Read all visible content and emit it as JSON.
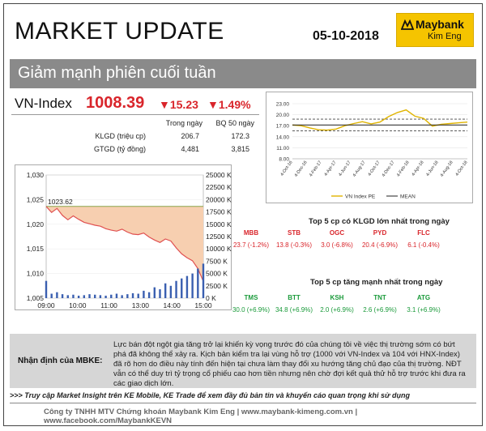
{
  "header": {
    "title": "MARKET UPDATE",
    "date": "05-10-2018",
    "logo_brand": "Maybank",
    "logo_sub": "Kim Eng"
  },
  "banner": {
    "text": "Giảm mạnh phiên cuối tuần"
  },
  "index": {
    "name": "VN-Index",
    "value": "1008.39",
    "change": "▼15.23",
    "change_pct": "▼1.49%"
  },
  "stats": {
    "col1": "Trong ngày",
    "col2": "BQ 50 ngày",
    "rows": [
      {
        "label": "KLGD (triệu cp)",
        "today": "206.7",
        "avg50": "172.3"
      },
      {
        "label": "GTGD (tỷ đồng)",
        "today": "4,481",
        "avg50": "3,815"
      }
    ]
  },
  "colors": {
    "accent_red": "#d9252b",
    "accent_green": "#1a9a3a",
    "logo_yellow": "#f5c400",
    "pe_line": "#e0b400",
    "index_line": "#e05050",
    "fill": "#f7cfb0"
  },
  "chart_data": [
    {
      "type": "line",
      "title": "",
      "series": [
        {
          "name": "VN Index PE",
          "values": [
            17.2,
            17.0,
            16.4,
            15.9,
            15.8,
            16.1,
            17.0,
            17.6,
            18.1,
            17.5,
            18.0,
            19.5,
            20.6,
            21.3,
            19.6,
            19.0,
            16.9,
            17.4,
            17.6,
            17.8,
            18.0
          ]
        },
        {
          "name": "MEAN",
          "values": [
            17.2,
            17.2,
            17.2,
            17.2,
            17.2,
            17.2,
            17.2,
            17.2,
            17.2,
            17.2,
            17.2,
            17.2,
            17.2,
            17.2,
            17.2,
            17.2,
            17.2,
            17.2,
            17.2,
            17.2,
            17.2
          ]
        }
      ],
      "bands": [
        18.8,
        15.6
      ],
      "x_ticks": [
        "4-Oct-16",
        "4-Dec-16",
        "4-Feb-17",
        "4-Apr-17",
        "4-Jun-17",
        "4-Aug-17",
        "4-Oct-17",
        "4-Dec-17",
        "4-Feb-18",
        "4-Apr-18",
        "4-Jun-18",
        "4-Aug-18",
        "4-Oct-18"
      ],
      "y_ticks": [
        "23.00",
        "20.00",
        "17.00",
        "14.00",
        "11.00",
        "8.00"
      ],
      "ylim": [
        8,
        23
      ],
      "legend": "bottom"
    },
    {
      "type": "area",
      "title": "",
      "x_ticks": [
        "09:00",
        "10:00",
        "11:00",
        "13:00",
        "14:00",
        "15:00"
      ],
      "y_left_ticks": [
        "1,030",
        "1,025",
        "1,020",
        "1,015",
        "1,010",
        "1,005"
      ],
      "y_right_ticks": [
        "25000 K",
        "22500 K",
        "20000 K",
        "17500 K",
        "15000 K",
        "12500 K",
        "10000 K",
        "7500 K",
        "5000 K",
        "2500 K",
        "0 K"
      ],
      "reference_label": "1023.62",
      "reference_value": 1023.62,
      "ylim": [
        1005,
        1030
      ],
      "index_values": [
        1023.6,
        1022.4,
        1023.2,
        1021.8,
        1020.9,
        1021.7,
        1021.0,
        1020.4,
        1020.1,
        1019.8,
        1019.6,
        1019.1,
        1018.8,
        1018.6,
        1019.0,
        1018.4,
        1018.0,
        1017.9,
        1018.2,
        1017.4,
        1016.8,
        1016.3,
        1017.0,
        1016.6,
        1015.2,
        1014.0,
        1013.2,
        1012.6,
        1011.0,
        1008.4
      ],
      "volume_k": [
        3500,
        900,
        1200,
        800,
        600,
        700,
        500,
        600,
        800,
        700,
        600,
        500,
        700,
        900,
        600,
        800,
        1000,
        900,
        1500,
        1200,
        2200,
        1800,
        3000,
        2500,
        3500,
        4000,
        4500,
        5000,
        6000,
        7000
      ]
    }
  ],
  "top_klgd": {
    "title": "Top 5 cp có KLGD lớn nhất trong ngày",
    "items": [
      {
        "code": "MBB",
        "detail": "23.7  (-1.2%)"
      },
      {
        "code": "STB",
        "detail": "13.8  (-0.3%)"
      },
      {
        "code": "OGC",
        "detail": "3.0  (-6.8%)"
      },
      {
        "code": "PYD",
        "detail": "20.4  (-6.9%)"
      },
      {
        "code": "FLC",
        "detail": "6.1  (-0.4%)"
      }
    ]
  },
  "top_gain": {
    "title": "Top 5 cp tăng mạnh nhất trong ngày",
    "items": [
      {
        "code": "TMS",
        "detail": "30.0  (+6.9%)"
      },
      {
        "code": "BTT",
        "detail": "34.8  (+6.9%)"
      },
      {
        "code": "KSH",
        "detail": "2.0  (+6.9%)"
      },
      {
        "code": "TNT",
        "detail": "2.6  (+6.9%)"
      },
      {
        "code": "ATG",
        "detail": "3.1  (+6.9%)"
      }
    ]
  },
  "assessment": {
    "label": "Nhận định của MBKE:",
    "text": "Lực bán đột ngột gia tăng trở lại khiến kỳ vọng trước đó của chúng tôi về việc thị trường sớm có bứt phá đã không thể xảy ra. Kịch bản kiểm tra lại vùng hỗ trợ (1000 với VN-Index và 104 với HNX-Index) đã rõ hơn do điều này tính đến hiện tại chưa làm thay đổi xu hướng tăng chủ đạo của thị trường. NĐT vẫn có thể duy trì tỷ trọng cổ phiếu cao hơn tiền nhưng nên chờ đợi kết quả thử hỗ trợ trước khi đưa ra các giao dịch lớn."
  },
  "footer": {
    "promo": ">>> Truy cập Market Insight trên KE Mobile, KE Trade để xem đầy đủ bản tin và khuyến cáo quan trọng khi sử dụng",
    "company": "Công ty TNHH MTV Chứng khoán Maybank Kim Eng  |  www.maybank-kimeng.com.vn  |  www.facebook.com/MaybankKEVN"
  }
}
